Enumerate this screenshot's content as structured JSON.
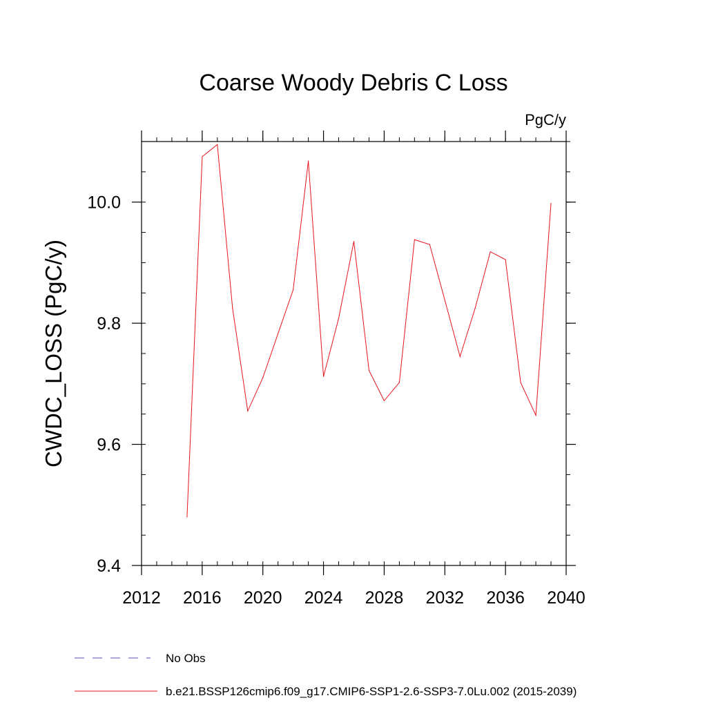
{
  "chart_data": {
    "type": "line",
    "title": "Coarse Woody Debris C Loss",
    "units_label": "PgC/y",
    "xlabel": "",
    "ylabel": "CWDC_LOSS  (PgC/y)",
    "xlim": [
      2012,
      2040
    ],
    "ylim": [
      9.4,
      10.1
    ],
    "x_ticks": [
      2012,
      2016,
      2020,
      2024,
      2028,
      2032,
      2036,
      2040
    ],
    "x_tick_labels": [
      "2012",
      "2016",
      "2020",
      "2024",
      "2028",
      "2032",
      "2036",
      "2040"
    ],
    "x_minor_step": 1,
    "y_ticks": [
      9.4,
      9.6,
      9.8,
      10.0
    ],
    "y_tick_labels": [
      "9.4",
      "9.6",
      "9.8",
      "10.0"
    ],
    "y_minor_step": 0.05,
    "grid": false,
    "series": [
      {
        "name": "b.e21.BSSP126cmip6.f09_g17.CMIP6-SSP1-2.6-SSP3-7.0Lu.002 (2015-2039)",
        "color": "#e8141c",
        "style": "solid",
        "x": [
          2015,
          2016,
          2017,
          2018,
          2019,
          2020,
          2021,
          2022,
          2023,
          2024,
          2025,
          2026,
          2027,
          2028,
          2029,
          2030,
          2031,
          2032,
          2033,
          2034,
          2035,
          2036,
          2037,
          2038,
          2039
        ],
        "values": [
          9.48,
          10.075,
          10.095,
          9.825,
          9.655,
          9.71,
          9.783,
          9.855,
          10.068,
          9.712,
          9.808,
          9.935,
          9.722,
          9.672,
          9.702,
          9.938,
          9.93,
          9.838,
          9.745,
          9.825,
          9.918,
          9.905,
          9.702,
          9.648,
          9.998
        ]
      }
    ],
    "legend": {
      "placement": "bottom",
      "entries": [
        {
          "label": "No Obs",
          "color": "#5a4fb0",
          "style": "dashed"
        },
        {
          "label": "b.e21.BSSP126cmip6.f09_g17.CMIP6-SSP1-2.6-SSP3-7.0Lu.002 (2015-2039)",
          "color": "#e8141c",
          "style": "solid"
        }
      ]
    }
  }
}
